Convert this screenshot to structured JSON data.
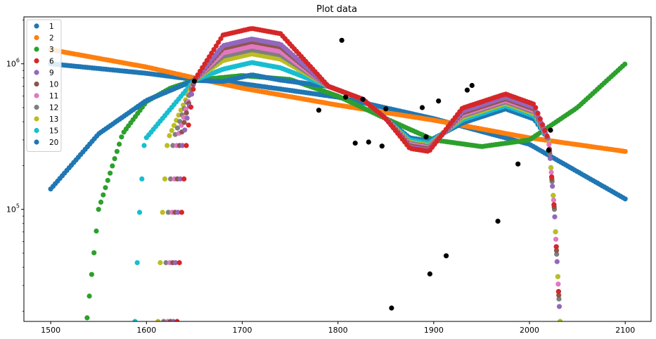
{
  "chart_data": {
    "type": "scatter",
    "title": "Plot data",
    "xlabel": "",
    "ylabel": "",
    "xlim": [
      1472,
      2127
    ],
    "ylim": [
      17000,
      2100000
    ],
    "yscale": "log",
    "x_ticks": [
      1500,
      1600,
      1700,
      1800,
      1900,
      2000,
      2100
    ],
    "x_tick_labels": [
      "1500",
      "1600",
      "1700",
      "1800",
      "1900",
      "2000",
      "2100"
    ],
    "y_major_ticks": [
      100000,
      1000000
    ],
    "y_tick_labels": [
      {
        "base": "10",
        "exp": "5"
      },
      {
        "base": "10",
        "exp": "6"
      }
    ],
    "legend": {
      "position": "top-left"
    },
    "observed": {
      "color": "#000000",
      "x": [
        1650,
        1780,
        1804,
        1808,
        1818,
        1826,
        1832,
        1846,
        1850,
        1856,
        1888,
        1892,
        1896,
        1905,
        1913,
        1935,
        1940,
        1967,
        1988,
        2020,
        2022
      ],
      "y": [
        760000,
        480000,
        1450000,
        590000,
        285000,
        570000,
        290000,
        272000,
        490000,
        21000,
        500000,
        315000,
        36000,
        555000,
        48000,
        660000,
        710000,
        83000,
        205000,
        255000,
        350000
      ]
    },
    "series": [
      {
        "name": "1",
        "color": "#1f77b4",
        "x": [
          1500,
          1600,
          1650,
          1700,
          1800,
          1900,
          2000,
          2100
        ],
        "y": [
          1000000,
          860000,
          780000,
          730000,
          590000,
          420000,
          280000,
          118000
        ]
      },
      {
        "name": "2",
        "color": "#ff7f0e",
        "x": [
          1500,
          1600,
          1650,
          1700,
          1800,
          1900,
          2000,
          2100
        ],
        "y": [
          1250000,
          950000,
          800000,
          680000,
          520000,
          410000,
          310000,
          250000
        ]
      },
      {
        "name": "3",
        "color": "#2ca02c",
        "x": [
          1538,
          1550,
          1575,
          1600,
          1625,
          1650,
          1700,
          1750,
          1800,
          1850,
          1900,
          1950,
          2000,
          2050,
          2100
        ],
        "y": [
          18000,
          100000,
          330000,
          550000,
          680000,
          770000,
          830000,
          780000,
          600000,
          420000,
          300000,
          270000,
          300000,
          500000,
          1000000
        ]
      }
    ],
    "fan_series": [
      {
        "name": "6",
        "color": "#d62728",
        "x0": 1632,
        "peak": 1750000,
        "trough": 250000,
        "hump": 620000
      },
      {
        "name": "9",
        "color": "#9467bd",
        "x0": 1628,
        "peak": 1480000,
        "trough": 255000,
        "hump": 590000
      },
      {
        "name": "10",
        "color": "#8c564b",
        "x0": 1625,
        "peak": 1420000,
        "trough": 260000,
        "hump": 575000
      },
      {
        "name": "11",
        "color": "#e377c2",
        "x0": 1622,
        "peak": 1320000,
        "trough": 265000,
        "hump": 560000
      },
      {
        "name": "12",
        "color": "#7f7f7f",
        "x0": 1618,
        "peak": 1250000,
        "trough": 270000,
        "hump": 548000
      },
      {
        "name": "13",
        "color": "#bcbd22",
        "x0": 1612,
        "peak": 1170000,
        "trough": 275000,
        "hump": 535000
      },
      {
        "name": "15",
        "color": "#17becf",
        "x0": 1588,
        "peak": 1020000,
        "trough": 285000,
        "hump": 515000
      },
      {
        "name": "20",
        "color": "#1f77b4",
        "x0": 1500,
        "y0": 138000,
        "peak": 840000,
        "trough": 295000,
        "hump": 490000
      }
    ]
  }
}
